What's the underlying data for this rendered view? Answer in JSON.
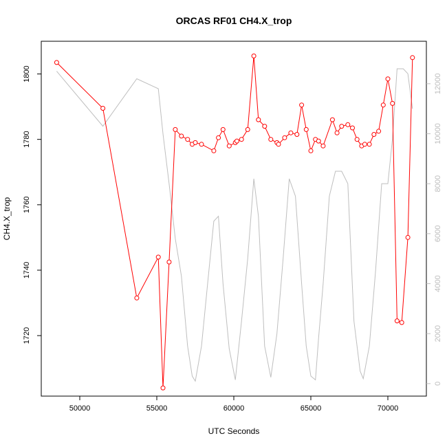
{
  "chart_data": {
    "type": "line",
    "title": "ORCAS RF01 CH4.X_trop",
    "xlabel": "UTC Seconds",
    "ylabel": "CH4.X_trop",
    "xlim": [
      47500,
      72500
    ],
    "ylim": [
      1701.5,
      1810
    ],
    "y2lim": [
      -500,
      13700
    ],
    "x_ticks": [
      50000,
      55000,
      60000,
      65000,
      70000
    ],
    "y_ticks": [
      1720,
      1740,
      1760,
      1780,
      1800
    ],
    "y2_ticks": [
      0,
      2000,
      4000,
      6000,
      8000,
      10000,
      12000
    ],
    "grid": false,
    "series": [
      {
        "color": "#ff0000",
        "axis": "left",
        "style": "line+circles",
        "x": [
          48500,
          51500,
          53700,
          55100,
          55400,
          55800,
          56200,
          56600,
          57000,
          57300,
          57500,
          57900,
          58700,
          59000,
          59300,
          59700,
          60100,
          60200,
          60500,
          60900,
          61300,
          61600,
          62000,
          62400,
          62800,
          62900,
          63300,
          63700,
          64100,
          64400,
          64700,
          65000,
          65300,
          65500,
          65800,
          66400,
          66700,
          67000,
          67400,
          67700,
          68000,
          68300,
          68500,
          68800,
          69100,
          69400,
          69700,
          70000,
          70300,
          70600,
          70900,
          71300,
          71600
        ],
        "y": [
          1803.5,
          1789.5,
          1731.5,
          1744,
          1704,
          1742.5,
          1783,
          1781,
          1780,
          1778.5,
          1779,
          1778.5,
          1776.5,
          1780.5,
          1783,
          1778,
          1779,
          1779.5,
          1780,
          1783,
          1805.5,
          1786,
          1784,
          1780,
          1779,
          1778.5,
          1780.5,
          1782,
          1781.5,
          1790.5,
          1783,
          1776.5,
          1780,
          1779.5,
          1778,
          1786,
          1782,
          1784,
          1784.5,
          1783.5,
          1780,
          1778,
          1778.5,
          1778.5,
          1781.5,
          1782.5,
          1790.5,
          1798.5,
          1791,
          1724.5,
          1724,
          1750,
          1805
        ]
      },
      {
        "color": "#bebebe",
        "axis": "right",
        "style": "line",
        "x": [
          48500,
          51500,
          53700,
          55100,
          55400,
          55800,
          56200,
          56600,
          57000,
          57300,
          57500,
          57900,
          58300,
          58700,
          59000,
          59300,
          59700,
          60100,
          60500,
          60900,
          61300,
          61600,
          62000,
          62400,
          62800,
          63200,
          63600,
          64000,
          64400,
          64700,
          65000,
          65300,
          65500,
          65800,
          66200,
          66600,
          67000,
          67400,
          67800,
          68200,
          68400,
          68800,
          69200,
          69600,
          70000,
          70300,
          70600,
          71000,
          71300,
          71600
        ],
        "y": [
          12500,
          10300,
          12200,
          11800,
          10000,
          8000,
          5800,
          4300,
          1500,
          300,
          100,
          1500,
          4000,
          6500,
          6700,
          4000,
          1400,
          150,
          2500,
          5000,
          8200,
          6700,
          1500,
          250,
          2000,
          5000,
          8200,
          7500,
          4000,
          1500,
          300,
          150,
          1800,
          4000,
          7500,
          8500,
          8500,
          8000,
          2500,
          500,
          200,
          1500,
          4500,
          8000,
          8000,
          9800,
          12600,
          12600,
          12400,
          11000
        ]
      }
    ]
  }
}
